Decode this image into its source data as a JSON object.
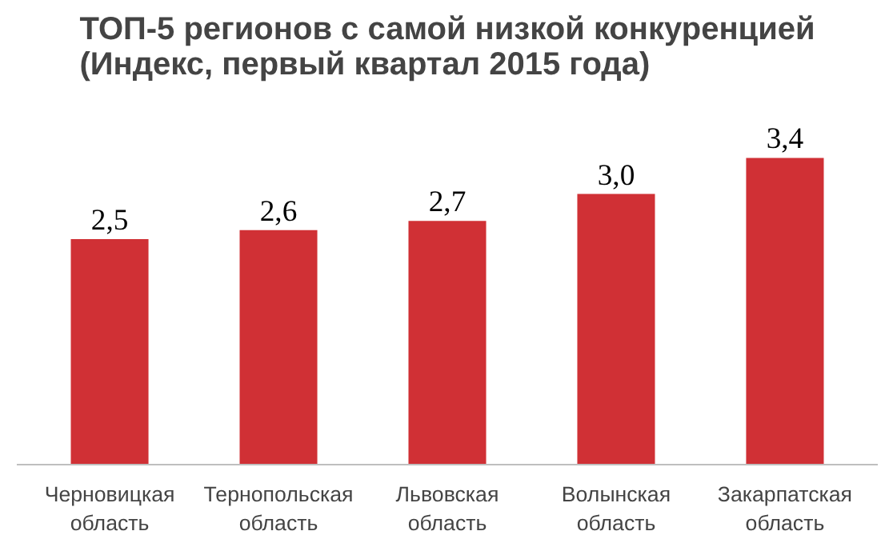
{
  "chart_data": {
    "type": "bar",
    "title": "ТОП-5 регионов с самой низкой конкуренцией\n(Индекс, первый квартал 2015 года)",
    "categories": [
      "Черновицкая область",
      "Тернопольская область",
      "Львовская область",
      "Волынская область",
      "Закарпатская область"
    ],
    "values": [
      2.5,
      2.6,
      2.7,
      3.0,
      3.4
    ],
    "color": "#d03035",
    "value_labels": [
      "2,5",
      "2,6",
      "2,7",
      "3,0",
      "3,4"
    ],
    "grid": false
  }
}
